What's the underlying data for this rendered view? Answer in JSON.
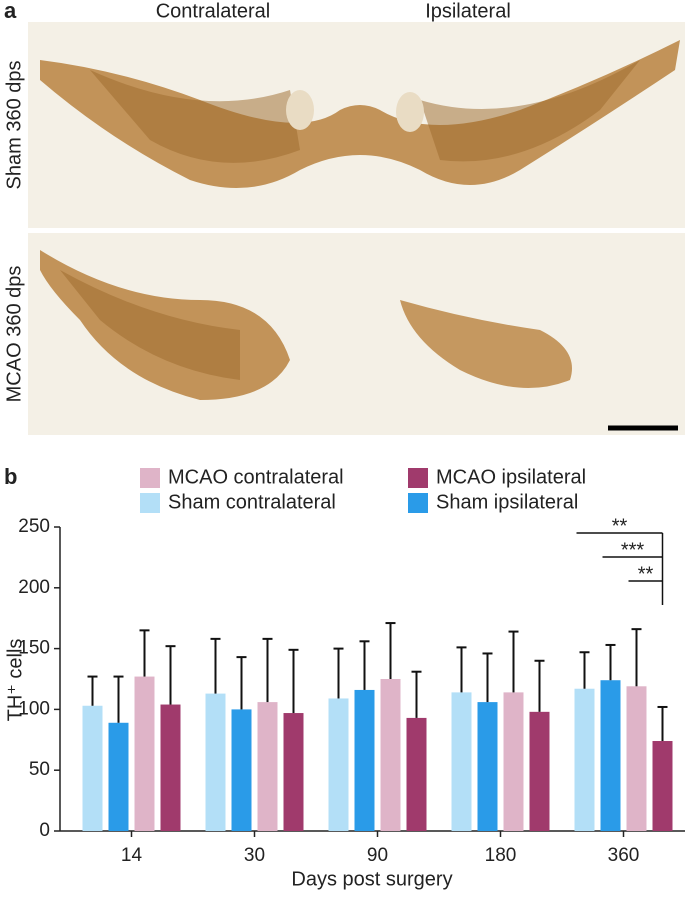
{
  "panel_a": {
    "label": "a",
    "column_labels": [
      "Contralateral",
      "Ipsilateral"
    ],
    "row_labels": [
      "Sham 360 dps",
      "MCAO 360 dps"
    ]
  },
  "chart_data": {
    "type": "bar",
    "panel_label": "b",
    "x_label": "Days post surgery",
    "y_label": "TH⁺ cells",
    "categories": [
      "14",
      "30",
      "90",
      "180",
      "360"
    ],
    "series": [
      {
        "name": "Sham contralateral",
        "color": "#b3dff7",
        "values": [
          103,
          113,
          109,
          114,
          117
        ],
        "errors": [
          24,
          45,
          41,
          37,
          30
        ]
      },
      {
        "name": "Sham ipsilateral",
        "color": "#2a9be8",
        "values": [
          89,
          100,
          116,
          106,
          124
        ],
        "errors": [
          38,
          43,
          40,
          40,
          29
        ]
      },
      {
        "name": "MCAO contralateral",
        "color": "#dfb4c8",
        "values": [
          127,
          106,
          125,
          114,
          119
        ],
        "errors": [
          38,
          52,
          46,
          50,
          47
        ]
      },
      {
        "name": "MCAO ipsilateral",
        "color": "#a03a6c",
        "values": [
          104,
          97,
          93,
          98,
          74
        ],
        "errors": [
          48,
          52,
          38,
          42,
          28
        ]
      }
    ],
    "ylim": [
      0,
      250
    ],
    "yticks": [
      0,
      50,
      100,
      150,
      200,
      250
    ],
    "annotations": [
      {
        "text": "**"
      },
      {
        "text": "***"
      },
      {
        "text": "**"
      }
    ]
  }
}
